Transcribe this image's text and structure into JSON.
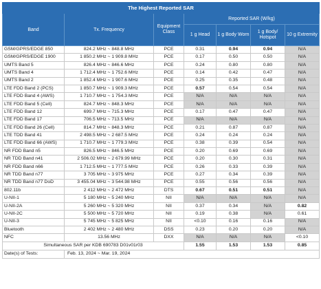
{
  "title": "The Highest Reported SAR",
  "headers": {
    "band": "Band",
    "freq": "Tx. Frequency",
    "equip": "Equipment Class",
    "reported": "Reported SAR (W/kg)",
    "head": "1 g Head",
    "body_worn": "1 g Body Worn",
    "hotspot": "1 g Body/ Hotspot",
    "extremity": "10 g Extremity"
  },
  "rows": [
    {
      "band": "GSM/GPRS/EDGE 850",
      "freq": "824.2 MHz ~ 848.8 MHz",
      "cls": "PCE",
      "head": "0.31",
      "bw": "0.94",
      "hs": "0.94",
      "ex": "N/A"
    },
    {
      "band": "GSM/GPRS/EDGE 1900",
      "freq": "1 850.2 MHz ~ 1 909.8 MHz",
      "cls": "PCE",
      "head": "0.17",
      "bw": "0.50",
      "hs": "0.50",
      "ex": "N/A"
    },
    {
      "band": "UMTS Band 5",
      "freq": "826.4 MHz ~ 846.6 MHz",
      "cls": "PCE",
      "head": "0.24",
      "bw": "0.80",
      "hs": "0.80",
      "ex": "N/A"
    },
    {
      "band": "UMTS Band 4",
      "freq": "1 712.4 MHz ~ 1 752.6 MHz",
      "cls": "PCE",
      "head": "0.14",
      "bw": "0.42",
      "hs": "0.47",
      "ex": "N/A"
    },
    {
      "band": "UMTS Band 2",
      "freq": "1 852.4 MHz ~ 1 907.6 MHz",
      "cls": "PCE",
      "head": "0.25",
      "bw": "0.35",
      "hs": "0.48",
      "ex": "N/A"
    },
    {
      "band": "LTE FDD Band 2 (PCS)",
      "freq": "1 850.7 MHz ~ 1 909.3 MHz",
      "cls": "PCE",
      "head": "0.57",
      "bw": "0.54",
      "hs": "0.54",
      "ex": "N/A"
    },
    {
      "band": "LTE FDD Band 4 (AWS)",
      "freq": "1 710.7 MHz ~ 1 754.3 MHz",
      "cls": "PCE",
      "head": "N/A",
      "bw": "N/A",
      "hs": "N/A",
      "ex": "N/A"
    },
    {
      "band": "LTE FDD Band 5 (Cell)",
      "freq": "824.7 MHz ~ 848.3 MHz",
      "cls": "PCE",
      "head": "N/A",
      "bw": "N/A",
      "hs": "N/A",
      "ex": "N/A"
    },
    {
      "band": "LTE FDD Band 12",
      "freq": "699.7 MHz ~ 715.3 MHz",
      "cls": "PCE",
      "head": "0.17",
      "bw": "0.47",
      "hs": "0.47",
      "ex": "N/A"
    },
    {
      "band": "LTE FDD Band 17",
      "freq": "706.5 MHz ~ 713.5 MHz",
      "cls": "PCE",
      "head": "N/A",
      "bw": "N/A",
      "hs": "N/A",
      "ex": "N/A"
    },
    {
      "band": "LTE FDD Band 26 (Cell)",
      "freq": "814.7 MHz ~ 848.3 MHz",
      "cls": "PCE",
      "head": "0.21",
      "bw": "0.87",
      "hs": "0.87",
      "ex": "N/A"
    },
    {
      "band": "LTE TDD Band 41",
      "freq": "2 498.5 MHz ~ 2 687.5 MHz",
      "cls": "PCE",
      "head": "0.24",
      "bw": "0.24",
      "hs": "0.24",
      "ex": "N/A"
    },
    {
      "band": "LTE FDD Band 66 (AWS)",
      "freq": "1 710.7 MHz ~ 1 779.3 MHz",
      "cls": "PCE",
      "head": "0.38",
      "bw": "0.39",
      "hs": "0.54",
      "ex": "N/A"
    },
    {
      "band": "NR FDD Band n5",
      "freq": "826.5 MHz ~ 846.5 MHz",
      "cls": "PCE",
      "head": "0.20",
      "bw": "0.69",
      "hs": "0.69",
      "ex": "N/A"
    },
    {
      "band": "NR TDD Band n41",
      "freq": "2 506.02 MHz ~ 2 679.99 MHz",
      "cls": "PCE",
      "head": "0.20",
      "bw": "0.30",
      "hs": "0.31",
      "ex": "N/A"
    },
    {
      "band": "NR FDD Band n66",
      "freq": "1 712.5 MHz ~ 1 777.5 MHz",
      "cls": "PCE",
      "head": "0.26",
      "bw": "0.33",
      "hs": "0.39",
      "ex": "N/A"
    },
    {
      "band": "NR TDD Band n77",
      "freq": "3 705 MHz ~ 3 975 MHz",
      "cls": "PCE",
      "head": "0.27",
      "bw": "0.34",
      "hs": "0.39",
      "ex": "N/A"
    },
    {
      "band": "NR TDD Band n77 DoD",
      "freq": "3 455.04 MHz ~ 3 544.98 MHz",
      "cls": "PCE",
      "head": "0.55",
      "bw": "0.56",
      "hs": "0.56",
      "ex": "N/A"
    },
    {
      "band": "802.11b",
      "freq": "2 412 MHz ~ 2 472 MHz",
      "cls": "DTS",
      "head": "0.67",
      "bw": "0.51",
      "hs": "0.51",
      "ex": "N/A"
    },
    {
      "band": "U-NII-1",
      "freq": "5 180 MHz ~ 5 240 MHz",
      "cls": "NII",
      "head": "N/A",
      "bw": "N/A",
      "hs": "N/A",
      "ex": "N/A"
    },
    {
      "band": "U-NII-2A",
      "freq": "5 260 MHz ~ 5 320 MHz",
      "cls": "NII",
      "head": "0.37",
      "bw": "0.34",
      "hs": "N/A",
      "ex": "0.82"
    },
    {
      "band": "U-NII-2C",
      "freq": "5 500 MHz ~ 5 720 MHz",
      "cls": "NII",
      "head": "0.19",
      "bw": "0.38",
      "hs": "N/A",
      "ex": "0.61"
    },
    {
      "band": "U-NII-3",
      "freq": "5 745 MHz ~ 5 825 MHz",
      "cls": "NII",
      "head": "<0.10",
      "bw": "0.16",
      "hs": "0.16",
      "ex": "N/A"
    },
    {
      "band": "Bluetooth",
      "freq": "2 402 MHz ~ 2 480 MHz",
      "cls": "DSS",
      "head": "0.23",
      "bw": "0.20",
      "hs": "0.20",
      "ex": "N/A"
    },
    {
      "band": "NFC",
      "freq": "13.56 MHz",
      "cls": "DXX",
      "head": "N/A",
      "bw": "N/A",
      "hs": "N/A",
      "ex": "<0.10"
    }
  ],
  "simultaneous": {
    "label": "Simultaneous SAR per KDB 690783 D01v01r03",
    "head": "1.55",
    "bw": "1.53",
    "hs": "1.53",
    "ex": "0.85"
  },
  "dates": {
    "label": "Date(s) of Tests:",
    "value": "Feb. 13, 2024 ~ Mar. 19, 2024"
  },
  "colors": {
    "header_bg": "#2c6eb3",
    "na_cell_bg": "#d3d3d3"
  }
}
